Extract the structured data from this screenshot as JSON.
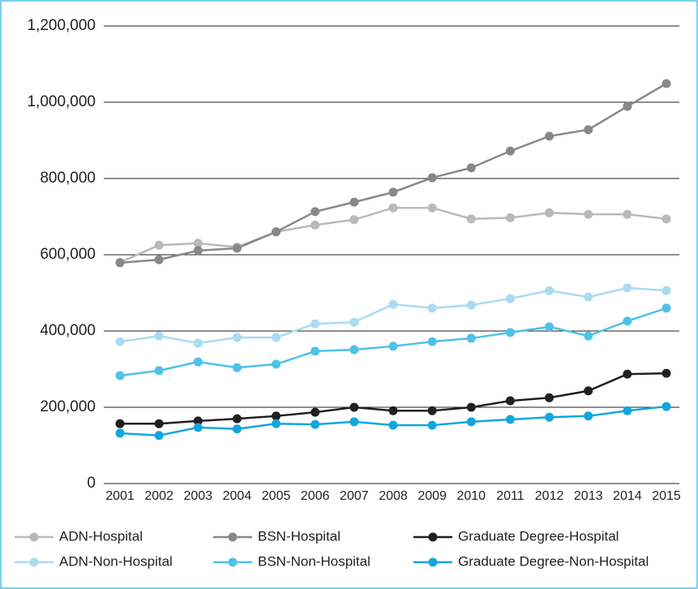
{
  "chart_data": {
    "type": "line",
    "categories": [
      "2001",
      "2002",
      "2003",
      "2004",
      "2005",
      "2006",
      "2007",
      "2008",
      "2009",
      "2010",
      "2011",
      "2012",
      "2013",
      "2014",
      "2015"
    ],
    "ylim": [
      0,
      1200000
    ],
    "yticks": [
      0,
      {
        "value": 200000,
        "label": "200,000"
      },
      {
        "value": 400000,
        "label": "400,000"
      },
      {
        "value": 600000,
        "label": "600,000"
      },
      {
        "value": 800000,
        "label": "800,000"
      },
      {
        "value": 1000000,
        "label": "1,000,000"
      },
      {
        "value": 1200000,
        "label": "1,200,000"
      }
    ],
    "grid": true,
    "legend": "bottom",
    "series": [
      {
        "name": "ADN-Hospital",
        "color": "#b9b9bb",
        "values": [
          580000,
          625000,
          630000,
          620000,
          660000,
          678000,
          692000,
          723000,
          723000,
          694000,
          697000,
          710000,
          706000,
          706000,
          694000
        ]
      },
      {
        "name": "BSN-Hospital",
        "color": "#88888a",
        "values": [
          579000,
          587000,
          611000,
          617000,
          660000,
          713000,
          738000,
          764000,
          802000,
          828000,
          872000,
          911000,
          928000,
          989000,
          1049000
        ]
      },
      {
        "name": "Graduate Degree-Hospital",
        "color": "#231f20",
        "values": [
          157000,
          157000,
          164000,
          170000,
          177000,
          187000,
          200000,
          191000,
          191000,
          200000,
          217000,
          225000,
          243000,
          287000,
          289000
        ]
      },
      {
        "name": "ADN-Non-Hospital",
        "color": "#a9dcf1",
        "values": [
          372000,
          387000,
          368000,
          383000,
          383000,
          419000,
          423000,
          470000,
          460000,
          468000,
          485000,
          506000,
          489000,
          513000,
          506000
        ]
      },
      {
        "name": "BSN-Non-Hospital",
        "color": "#4fc1e9",
        "values": [
          283000,
          296000,
          319000,
          304000,
          313000,
          347000,
          351000,
          360000,
          372000,
          381000,
          396000,
          411000,
          387000,
          426000,
          460000
        ]
      },
      {
        "name": "Graduate Degree-Non-Hospital",
        "color": "#13a6de",
        "values": [
          132000,
          126000,
          147000,
          143000,
          157000,
          155000,
          162000,
          153000,
          153000,
          162000,
          168000,
          174000,
          177000,
          191000,
          202000
        ]
      }
    ]
  }
}
